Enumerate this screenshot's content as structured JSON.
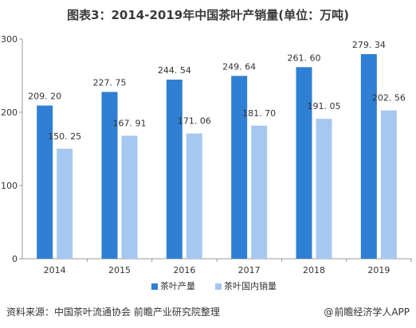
{
  "title": "图表3：2014-2019年中国茶叶产销量(单位：万吨)",
  "chart_data": {
    "type": "bar",
    "categories": [
      "2014",
      "2015",
      "2016",
      "2017",
      "2018",
      "2019"
    ],
    "series": [
      {
        "name": "茶叶产量",
        "values": [
          209.2,
          227.75,
          244.54,
          249.64,
          261.6,
          279.34
        ],
        "labels": [
          "209. 20",
          "227. 75",
          "244. 54",
          "249. 64",
          "261. 60",
          "279. 34"
        ],
        "color": "#2f7fd4"
      },
      {
        "name": "茶叶国内销量",
        "values": [
          150.25,
          167.91,
          171.06,
          181.7,
          191.05,
          202.56
        ],
        "labels": [
          "150. 25",
          "167. 91",
          "171. 06",
          "181. 70",
          "191. 05",
          "202. 56"
        ],
        "color": "#a6c8f0"
      }
    ],
    "ylim": [
      0,
      300
    ],
    "yticks": [
      "0",
      "100",
      "200",
      "300"
    ],
    "grid": false,
    "legend": "bottom"
  },
  "source_text": "资料来源：中国茶叶流通协会 前瞻产业研究院整理",
  "brand_text": "前瞻经济学人APP",
  "brand_icon": "@"
}
